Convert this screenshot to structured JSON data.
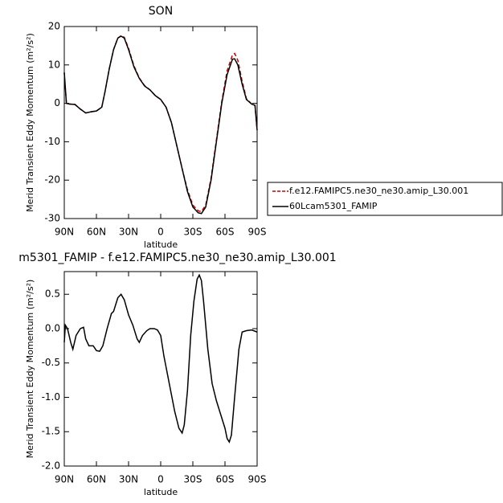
{
  "chart_data": [
    {
      "type": "line",
      "title": "SON",
      "xlabel": "latitude",
      "ylabel": "Merid Transient Eddy Momentum (m²/s²)",
      "xlim": [
        90,
        -90
      ],
      "xticks": [
        {
          "value": 90,
          "label": "90N"
        },
        {
          "value": 60,
          "label": "60N"
        },
        {
          "value": 30,
          "label": "30N"
        },
        0,
        {
          "value": -30,
          "label": "30S"
        },
        {
          "value": -60,
          "label": "60S"
        },
        {
          "value": -90,
          "label": "90S"
        }
      ],
      "ylim": [
        -30,
        20
      ],
      "yticks": [
        -30,
        -20,
        -10,
        0,
        10,
        20
      ],
      "legend": "right",
      "x": [
        90,
        88,
        85,
        80,
        75,
        70,
        65,
        60,
        55,
        52,
        48,
        44,
        40,
        37,
        34,
        30,
        25,
        20,
        15,
        10,
        5,
        0,
        -5,
        -10,
        -15,
        -20,
        -25,
        -30,
        -35,
        -38,
        -42,
        -47,
        -52,
        -57,
        -62,
        -67,
        -69,
        -72,
        -76,
        -80,
        -85,
        -88,
        -90
      ],
      "series": [
        {
          "name": "f.e12.FAMIPC5.ne30_ne30.amip_L30.001",
          "color": "#cc0000",
          "dash": true,
          "values": [
            8,
            0,
            -0.2,
            -0.3,
            -1.5,
            -2.5,
            -2.2,
            -2,
            -1,
            3,
            9,
            14,
            17,
            17.6,
            17.2,
            14.3,
            9.8,
            6.6,
            4.6,
            3.5,
            2,
            1,
            -1,
            -5,
            -11,
            -17,
            -22.5,
            -26.5,
            -28,
            -28.2,
            -26.5,
            -19.5,
            -9.5,
            0.5,
            8.5,
            12.6,
            13,
            11.2,
            5.8,
            1.2,
            -0.2,
            -0.5,
            -7
          ]
        },
        {
          "name": "60Lcam5301_FAMIP",
          "color": "#000000",
          "dash": false,
          "values": [
            8,
            0,
            -0.2,
            -0.3,
            -1.5,
            -2.5,
            -2.2,
            -2,
            -1,
            3,
            9,
            14,
            17,
            17.5,
            17,
            14,
            9.5,
            6.5,
            4.5,
            3.5,
            2,
            1,
            -1,
            -5,
            -11,
            -17,
            -23,
            -27,
            -28.5,
            -28.7,
            -27,
            -20,
            -10,
            0,
            7.5,
            11.5,
            11.6,
            10,
            5,
            1,
            -0.2,
            -0.5,
            -7
          ]
        }
      ]
    },
    {
      "type": "line",
      "title": "m5301_FAMIP - f.e12.FAMIPC5.ne30_ne30.amip_L30.001",
      "xlabel": "latitude",
      "ylabel": "Merid Transient Eddy Momentum (m²/s²)",
      "xlim": [
        90,
        -90
      ],
      "xticks": [
        {
          "value": 90,
          "label": "90N"
        },
        {
          "value": 60,
          "label": "60N"
        },
        {
          "value": 30,
          "label": "30N"
        },
        0,
        {
          "value": -30,
          "label": "30S"
        },
        {
          "value": -60,
          "label": "60S"
        },
        {
          "value": -90,
          "label": "90S"
        }
      ],
      "ylim": [
        -2.0,
        0.83
      ],
      "yticks": [
        {
          "value": -2,
          "label": "-2.0"
        },
        -1.5,
        {
          "value": -1,
          "label": "-1.0"
        },
        -0.5,
        {
          "value": 0,
          "label": "0.0"
        },
        0.5
      ],
      "x": [
        90,
        89,
        87,
        84,
        82,
        79,
        75,
        72,
        70,
        67,
        63,
        60,
        57,
        54,
        50,
        46,
        44,
        40,
        37,
        34,
        30,
        26,
        22,
        20,
        17,
        13,
        10,
        6,
        3,
        0,
        -3,
        -8,
        -13,
        -17,
        -20,
        -22,
        -25,
        -28,
        -31,
        -34,
        -36,
        -38,
        -40,
        -44,
        -48,
        -52,
        -56,
        -60,
        -62,
        -64,
        -66,
        -69,
        -73,
        -76,
        -80,
        -85,
        -90
      ],
      "series": [
        {
          "color": "#000000",
          "dash": false,
          "values": [
            -0.2,
            0.05,
            0,
            -0.2,
            -0.3,
            -0.1,
            0,
            0.02,
            -0.15,
            -0.25,
            -0.25,
            -0.32,
            -0.33,
            -0.25,
            0,
            0.22,
            0.25,
            0.45,
            0.5,
            0.42,
            0.2,
            0.05,
            -0.15,
            -0.2,
            -0.1,
            -0.03,
            0,
            0,
            -0.02,
            -0.1,
            -0.4,
            -0.8,
            -1.2,
            -1.45,
            -1.52,
            -1.4,
            -0.9,
            -0.1,
            0.4,
            0.72,
            0.78,
            0.7,
            0.4,
            -0.3,
            -0.8,
            -1.05,
            -1.25,
            -1.45,
            -1.6,
            -1.65,
            -1.55,
            -1.0,
            -0.3,
            -0.05,
            -0.03,
            -0.02,
            -0.05
          ]
        }
      ]
    }
  ]
}
